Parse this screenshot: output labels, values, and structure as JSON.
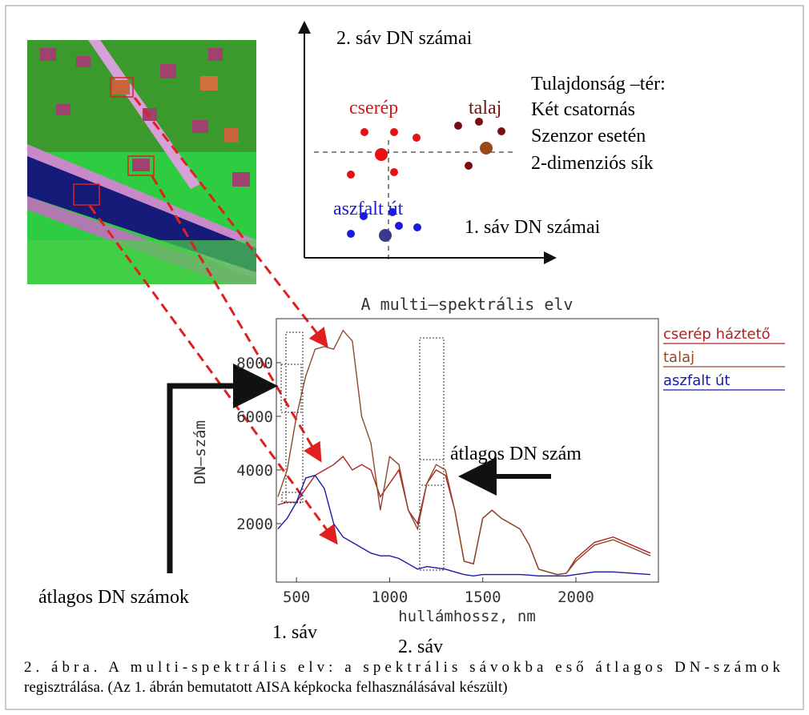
{
  "scatter_diagram": {
    "y_axis_label": "2. sáv DN számai",
    "x_axis_label": "1. sáv DN számai",
    "clusters": [
      "cserép",
      "talaj",
      "aszfalt út"
    ],
    "note_lines": [
      "Tulajdonság –tér:",
      "Két csatornás",
      "Szenzor esetén",
      "2-dimenziós sík"
    ]
  },
  "chart_data": {
    "type": "line",
    "title": "A multi–spektrális elv",
    "x_label": "hullámhossz, nm",
    "y_label": "DN–szám",
    "x": [
      400,
      450,
      500,
      550,
      600,
      650,
      700,
      750,
      800,
      850,
      900,
      950,
      1000,
      1050,
      1100,
      1150,
      1200,
      1250,
      1300,
      1350,
      1400,
      1450,
      1500,
      1550,
      1600,
      1650,
      1700,
      1750,
      1800,
      1850,
      1900,
      1950,
      2000,
      2100,
      2200,
      2300,
      2400
    ],
    "series": [
      {
        "name": "cserép háztető",
        "color": "#b22222",
        "values": [
          2700,
          2800,
          2800,
          3300,
          3800,
          4000,
          4200,
          4500,
          4000,
          4200,
          4000,
          3000,
          3500,
          4000,
          2500,
          2000,
          3500,
          4000,
          3800,
          2500,
          600,
          500,
          2200,
          2500,
          2200,
          2000,
          1800,
          1200,
          300,
          200,
          100,
          150,
          700,
          1300,
          1500,
          1200,
          900
        ]
      },
      {
        "name": "talaj",
        "color": "#8b4a2b",
        "values": [
          3000,
          4000,
          6000,
          7500,
          8500,
          8600,
          8500,
          9200,
          8800,
          6000,
          5000,
          2500,
          4500,
          4200,
          2500,
          1800,
          3500,
          4200,
          4000,
          2500,
          600,
          500,
          2200,
          2500,
          2200,
          2000,
          1800,
          1200,
          300,
          200,
          100,
          150,
          600,
          1200,
          1400,
          1100,
          800
        ]
      },
      {
        "name": "aszfalt út",
        "color": "#1a1aa8",
        "values": [
          1800,
          2200,
          2800,
          3700,
          3800,
          3300,
          2000,
          1500,
          1300,
          1100,
          900,
          800,
          800,
          700,
          500,
          300,
          400,
          350,
          300,
          200,
          100,
          50,
          100,
          100,
          100,
          100,
          100,
          80,
          50,
          50,
          50,
          50,
          100,
          200,
          200,
          150,
          100
        ]
      }
    ],
    "xlim": [
      392,
      2443
    ],
    "ylim": [
      -180,
      9640
    ],
    "xticks": [
      500,
      1000,
      1500,
      2000
    ],
    "yticks": [
      2000,
      4000,
      6000,
      8000
    ],
    "legend": "right",
    "grid": false
  },
  "annotations": {
    "band_mean": "átlagos DN szám",
    "band_means": "átlagos DN számok",
    "band_1": "1. sáv",
    "band_2": "2. sáv"
  },
  "caption": [
    "2. ábra. A multi-spektrális elv: a spektrális sávokba eső átlagos DN-számok",
    "regisztrálása. (Az 1. ábrán bemutatott AISA  képkocka felhasználásával készült)"
  ]
}
